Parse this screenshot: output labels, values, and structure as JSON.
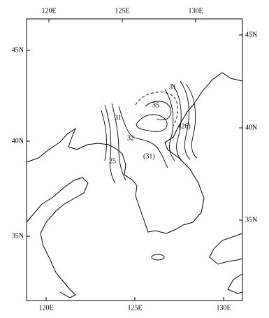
{
  "axis_labels": {
    "top": [
      "120E",
      "125E",
      "130E"
    ],
    "bottom": [
      "120E",
      "125E",
      "130E"
    ],
    "left": [
      "45N",
      "40N",
      "35N"
    ],
    "right": [
      "45N",
      "40N",
      "35N"
    ]
  },
  "contour_labels": [
    "31",
    "35",
    "31",
    "32",
    "25",
    "(31)",
    "(26)"
  ]
}
